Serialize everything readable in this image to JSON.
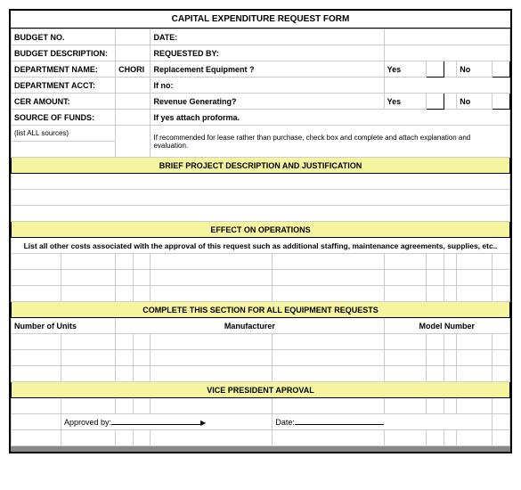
{
  "title": "CAPITAL EXPENDITURE REQUEST FORM",
  "left": {
    "budget_no": "BUDGET NO.",
    "budget_desc": "BUDGET DESCRIPTION:",
    "dept_name": "DEPARTMENT NAME:",
    "dept_name_val": "CHORI",
    "dept_acct": "DEPARTMENT ACCT:",
    "cer_amount": "CER AMOUNT:",
    "source_funds": "SOURCE OF FUNDS:",
    "list_sources": "(list ALL sources)"
  },
  "right": {
    "date": "DATE:",
    "requested_by": "REQUESTED BY:",
    "replacement_q": "Replacement Equipment ?",
    "if_no": "If no:",
    "revenue_q": "Revenue Generating?",
    "if_yes": "If yes attach proforma.",
    "lease_note": "If recommended for lease rather than purchase, check box and complete and attach explanation and evaluation.",
    "yes": "Yes",
    "no": "No"
  },
  "sections": {
    "brief": "BRIEF PROJECT DESCRIPTION AND JUSTIFICATION",
    "effect": "EFFECT ON OPERATIONS",
    "effect_instr": "List all other costs associated with the approval of this request such as additional staffing, maintenance agreements, supplies, etc..",
    "equipment": "COMPLETE THIS SECTION FOR ALL EQUIPMENT REQUESTS",
    "units": "Number of Units",
    "manufacturer": "Manufacturer",
    "model": "Model Number",
    "vp": "VICE PRESIDENT APROVAL",
    "approved_by": "Approved by:",
    "date_label": "Date:"
  },
  "colors": {
    "section_bg": "#f5f5a0",
    "border": "#000000",
    "grid": "#cccccc"
  }
}
